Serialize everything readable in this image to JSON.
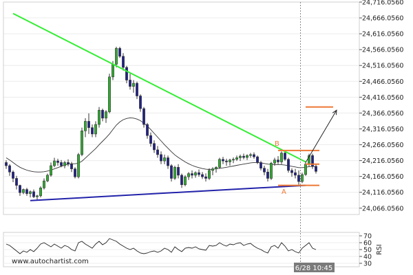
{
  "chart_data": {
    "type": "candlestick",
    "instrument": "",
    "watermark": "www.autochartist.com",
    "time_label": "6/28 10:45",
    "yaxis": {
      "ylim": [
        24046.056,
        24716.056
      ],
      "ticks": [
        24066.056,
        24116.056,
        24166.056,
        24216.056,
        24266.056,
        24316.056,
        24366.056,
        24416.056,
        24466.056,
        24516.056,
        24566.056,
        24616.056,
        24666.056,
        24716.056
      ],
      "tick_labels": [
        "24,066.0560",
        "24,116.0560",
        "24,166.0560",
        "24,216.0560",
        "24,266.0560",
        "24,316.0560",
        "24,366.0560",
        "24,416.0560",
        "24,466.0560",
        "24,516.0560",
        "24,566.0560",
        "24,616.0560",
        "24,666.0560",
        "24,716.0560"
      ]
    },
    "candles": [
      [
        24210,
        24217,
        24190,
        24200
      ],
      [
        24200,
        24205,
        24168,
        24180
      ],
      [
        24180,
        24185,
        24148,
        24160
      ],
      [
        24160,
        24168,
        24125,
        24138
      ],
      [
        24138,
        24140,
        24105,
        24115
      ],
      [
        24115,
        24128,
        24110,
        24125
      ],
      [
        24125,
        24130,
        24105,
        24112
      ],
      [
        24112,
        24122,
        24100,
        24118
      ],
      [
        24118,
        24125,
        24098,
        24102
      ],
      [
        24102,
        24108,
        24090,
        24105
      ],
      [
        24105,
        24135,
        24100,
        24130
      ],
      [
        24130,
        24160,
        24125,
        24152
      ],
      [
        24152,
        24175,
        24148,
        24170
      ],
      [
        24170,
        24210,
        24165,
        24200
      ],
      [
        24200,
        24225,
        24195,
        24215
      ],
      [
        24215,
        24222,
        24200,
        24210
      ],
      [
        24210,
        24218,
        24195,
        24200
      ],
      [
        24200,
        24215,
        24192,
        24210
      ],
      [
        24210,
        24220,
        24198,
        24205
      ],
      [
        24205,
        24212,
        24180,
        24190
      ],
      [
        24190,
        24195,
        24160,
        24165
      ],
      [
        24165,
        24240,
        24160,
        24235
      ],
      [
        24235,
        24320,
        24230,
        24310
      ],
      [
        24310,
        24350,
        24290,
        24340
      ],
      [
        24340,
        24365,
        24300,
        24320
      ],
      [
        24320,
        24330,
        24290,
        24300
      ],
      [
        24300,
        24340,
        24290,
        24330
      ],
      [
        24330,
        24385,
        24320,
        24375
      ],
      [
        24375,
        24380,
        24340,
        24350
      ],
      [
        24350,
        24375,
        24335,
        24370
      ],
      [
        24370,
        24490,
        24365,
        24480
      ],
      [
        24480,
        24530,
        24470,
        24520
      ],
      [
        24520,
        24575,
        24510,
        24570
      ],
      [
        24570,
        24575,
        24540,
        24545
      ],
      [
        24545,
        24555,
        24500,
        24510
      ],
      [
        24510,
        24515,
        24460,
        24470
      ],
      [
        24470,
        24490,
        24440,
        24450
      ],
      [
        24450,
        24470,
        24430,
        24460
      ],
      [
        24460,
        24465,
        24410,
        24420
      ],
      [
        24420,
        24425,
        24370,
        24380
      ],
      [
        24380,
        24385,
        24320,
        24330
      ],
      [
        24330,
        24335,
        24285,
        24295
      ],
      [
        24295,
        24305,
        24260,
        24270
      ],
      [
        24270,
        24280,
        24240,
        24250
      ],
      [
        24250,
        24262,
        24225,
        24235
      ],
      [
        24235,
        24245,
        24205,
        24215
      ],
      [
        24215,
        24235,
        24205,
        24225
      ],
      [
        24225,
        24232,
        24190,
        24200
      ],
      [
        24200,
        24205,
        24150,
        24160
      ],
      [
        24160,
        24200,
        24155,
        24195
      ],
      [
        24195,
        24205,
        24160,
        24170
      ],
      [
        24170,
        24175,
        24130,
        24140
      ],
      [
        24140,
        24170,
        24135,
        24165
      ],
      [
        24165,
        24180,
        24155,
        24175
      ],
      [
        24175,
        24185,
        24160,
        24170
      ],
      [
        24170,
        24182,
        24162,
        24178
      ],
      [
        24178,
        24188,
        24165,
        24172
      ],
      [
        24172,
        24180,
        24158,
        24165
      ],
      [
        24165,
        24176,
        24150,
        24160
      ],
      [
        24160,
        24192,
        24155,
        24185
      ],
      [
        24185,
        24195,
        24170,
        24190
      ],
      [
        24190,
        24198,
        24178,
        24195
      ],
      [
        24195,
        24225,
        24190,
        24220
      ],
      [
        24220,
        24228,
        24205,
        24215
      ],
      [
        24215,
        24222,
        24200,
        24212
      ],
      [
        24212,
        24222,
        24200,
        24218
      ],
      [
        24218,
        24226,
        24208,
        24220
      ],
      [
        24220,
        24232,
        24215,
        24225
      ],
      [
        24225,
        24235,
        24215,
        24230
      ],
      [
        24230,
        24238,
        24220,
        24226
      ],
      [
        24226,
        24236,
        24218,
        24232
      ],
      [
        24232,
        24240,
        24225,
        24235
      ],
      [
        24235,
        24242,
        24222,
        24228
      ],
      [
        24228,
        24232,
        24205,
        24210
      ],
      [
        24210,
        24215,
        24185,
        24192
      ],
      [
        24192,
        24200,
        24170,
        24180
      ],
      [
        24180,
        24190,
        24150,
        24160
      ],
      [
        24160,
        24212,
        24155,
        24208
      ],
      [
        24208,
        24225,
        24200,
        24218
      ],
      [
        24218,
        24230,
        24205,
        24212
      ],
      [
        24212,
        24245,
        24205,
        24240
      ],
      [
        24240,
        24248,
        24215,
        24220
      ],
      [
        24220,
        24225,
        24178,
        24185
      ],
      [
        24185,
        24192,
        24165,
        24178
      ],
      [
        24178,
        24190,
        24160,
        24170
      ],
      [
        24170,
        24185,
        24140,
        24150
      ],
      [
        24150,
        24178,
        24145,
        24172
      ],
      [
        24172,
        24212,
        24168,
        24205
      ],
      [
        24205,
        24238,
        24198,
        24232
      ],
      [
        24232,
        24238,
        24190,
        24198
      ],
      [
        24198,
        24205,
        24175,
        24182
      ]
    ],
    "moving_average": [
      24225,
      24218,
      24210,
      24202,
      24195,
      24190,
      24186,
      24183,
      24181,
      24180,
      24180,
      24181,
      24183,
      24186,
      24190,
      24194,
      24198,
      24202,
      24205,
      24206,
      24206,
      24208,
      24214,
      24224,
      24234,
      24244,
      24254,
      24266,
      24277,
      24288,
      24300,
      24314,
      24328,
      24338,
      24345,
      24349,
      24351,
      24350,
      24347,
      24342,
      24334,
      24325,
      24314,
      24302,
      24290,
      24278,
      24266,
      24255,
      24244,
      24234,
      24226,
      24219,
      24212,
      24206,
      24201,
      24197,
      24194,
      24191,
      24189,
      24188,
      24189,
      24190,
      24192,
      24193,
      24195,
      24197,
      24199,
      24201,
      24203,
      24205,
      24207,
      24209,
      24210,
      24210,
      24209,
      24207,
      24205,
      24204,
      24203,
      24203,
      24203,
      24202,
      24200,
      24198,
      24196,
      24194,
      24194,
      24195,
      24197,
      24198,
      24197
    ],
    "rsi": {
      "ticks": [
        30,
        40,
        50,
        60,
        70
      ],
      "tick_labels": [
        "30",
        "40",
        "50",
        "60",
        "70"
      ],
      "axis_title": "RSI",
      "ylim": [
        25,
        75
      ],
      "values": [
        58,
        56,
        52,
        48,
        44,
        48,
        46,
        50,
        47,
        52,
        58,
        60,
        57,
        54,
        58,
        55,
        52,
        56,
        54,
        50,
        48,
        60,
        62,
        58,
        55,
        52,
        58,
        62,
        57,
        60,
        66,
        64,
        62,
        58,
        55,
        52,
        50,
        52,
        48,
        45,
        44,
        45,
        47,
        48,
        46,
        48,
        52,
        50,
        46,
        54,
        50,
        47,
        52,
        53,
        52,
        54,
        51,
        50,
        49,
        56,
        55,
        56,
        60,
        57,
        55,
        58,
        57,
        59,
        60,
        56,
        58,
        59,
        55,
        52,
        50,
        47,
        45,
        54,
        56,
        52,
        60,
        55,
        48,
        50,
        47,
        45,
        52,
        56,
        60,
        52,
        50
      ]
    },
    "pattern": {
      "name": "Triangle",
      "resistance_line": {
        "from": [
          2,
          24680
        ],
        "to": [
          87,
          24212
        ],
        "color": "#33ee33"
      },
      "support_line": {
        "from": [
          7,
          24090
        ],
        "to": [
          87,
          24138
        ],
        "color": "#2222aa"
      },
      "point_labels": [
        {
          "text": "B",
          "candle": 78,
          "price": 24272,
          "color": "#ee7733"
        },
        {
          "text": "A",
          "candle": 80,
          "price": 24120,
          "color": "#ee7733"
        }
      ],
      "levels": [
        {
          "price": 24248,
          "from": 79,
          "to": 91,
          "color": "#ee7733"
        },
        {
          "price": 24205,
          "from": 87,
          "to": 91,
          "color": "#ee7733"
        },
        {
          "price": 24138,
          "from": 79,
          "to": 91,
          "color": "#ee7733"
        },
        {
          "price": 24385,
          "from": 87,
          "to": 95,
          "color": "#ee7733"
        }
      ],
      "forecast_arrow": {
        "from": [
          87,
          24210
        ],
        "to": [
          96,
          24375
        ],
        "color": "#222222"
      },
      "projection_time_line_candle": 85.5
    },
    "colors": {
      "up_body": "#33aa33",
      "down_body": "#222288",
      "wick": "#333333",
      "grid": "#ececec",
      "ma": "#333333"
    }
  }
}
